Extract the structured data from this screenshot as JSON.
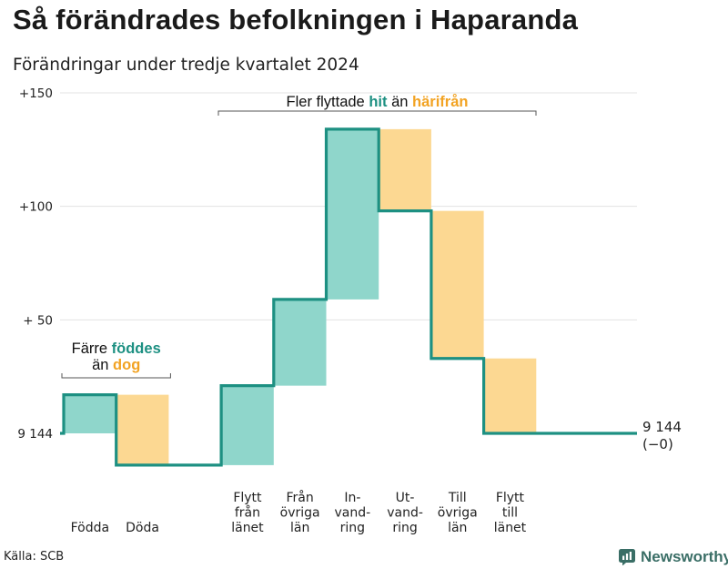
{
  "title": "Så förändrades befolkningen i Haparanda",
  "subtitle": "Förändringar under tredje kvartalet 2024",
  "source": "Källa: SCB",
  "brand": {
    "name": "Newsworthy",
    "icon": "newsworthy-logo-icon"
  },
  "colors": {
    "increase": "#8fd6cb",
    "decrease": "#fcd892",
    "line": "#1d9082",
    "hit_text": "#1d9082",
    "harifran_text": "#f2a323",
    "grid": "#e3e3e3",
    "bracket": "#555555"
  },
  "annotations": {
    "left": {
      "line1_pre": "Färre ",
      "line1_em": "föddes",
      "line2_pre": "än ",
      "line2_em": "dog"
    },
    "right": {
      "pre": "Fler flyttade ",
      "em1": "hit",
      "mid": " än ",
      "em2": "härifrån"
    }
  },
  "chart_data": {
    "type": "waterfall",
    "baseline": 9144,
    "baseline_label": "9 144",
    "end_label": "9 144",
    "end_change_label": "(−0)",
    "ylim": [
      -12,
      150
    ],
    "yticks": [
      {
        "value": 0,
        "label": "9 144"
      },
      {
        "value": 50,
        "label": "+ 50"
      },
      {
        "value": 100,
        "label": "+100"
      },
      {
        "value": 150,
        "label": "+150"
      }
    ],
    "steps": [
      {
        "category": "Födda",
        "label_lines": [
          "Födda"
        ],
        "change": 17,
        "kind": "increase",
        "group": "natural"
      },
      {
        "category": "Döda",
        "label_lines": [
          "Döda"
        ],
        "change": -31,
        "kind": "decrease",
        "group": "natural"
      },
      {
        "category": "Flytt från länet",
        "label_lines": [
          "Flytt",
          "från",
          "länet"
        ],
        "change": 35,
        "kind": "increase",
        "group": "migration"
      },
      {
        "category": "Från övriga län",
        "label_lines": [
          "Från",
          "övriga",
          "län"
        ],
        "change": 38,
        "kind": "increase",
        "group": "migration"
      },
      {
        "category": "Invandring",
        "label_lines": [
          "In-",
          "vand-",
          "ring"
        ],
        "change": 75,
        "kind": "increase",
        "group": "migration"
      },
      {
        "category": "Utvandring",
        "label_lines": [
          "Ut-",
          "vand-",
          "ring"
        ],
        "change": -36,
        "kind": "decrease",
        "group": "migration"
      },
      {
        "category": "Till övriga län",
        "label_lines": [
          "Till",
          "övriga",
          "län"
        ],
        "change": -65,
        "kind": "decrease",
        "group": "migration"
      },
      {
        "category": "Flytt till länet",
        "label_lines": [
          "Flytt",
          "till",
          "länet"
        ],
        "change": -33,
        "kind": "decrease",
        "group": "migration"
      }
    ],
    "net_change": 0
  }
}
